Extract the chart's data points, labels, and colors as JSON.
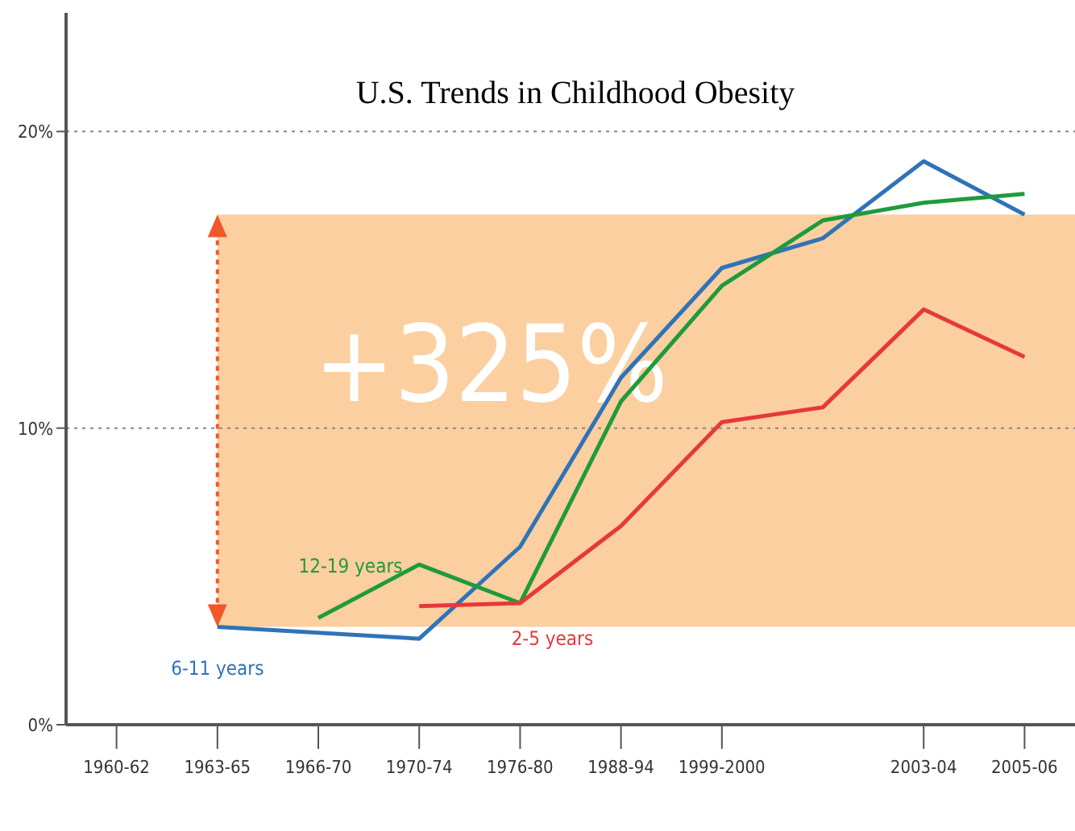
{
  "chart_data": {
    "type": "line",
    "title": "U.S. Trends in Childhood Obesity",
    "categories": [
      "1960-62",
      "1963-65",
      "1966-70",
      "1970-74",
      "1976-80",
      "1988-94",
      "1999-2000",
      null,
      "2003-04",
      "2005-06"
    ],
    "ylim": [
      0,
      24
    ],
    "yticks": [
      {
        "value": 0,
        "label": "0%"
      },
      {
        "value": 10,
        "label": "10%"
      },
      {
        "value": 20,
        "label": "20%"
      }
    ],
    "grid": "y",
    "marker": "none",
    "line_style": "solid",
    "bands": [
      {
        "axis": "y",
        "from": 3.3,
        "to": 17.2,
        "label": "+325%",
        "color": "#fbcf9f"
      }
    ],
    "series": [
      {
        "name": "6-11 years",
        "color": "#2f73b8",
        "values": [
          null,
          3.3,
          null,
          2.9,
          6.0,
          11.7,
          15.4,
          16.4,
          19.0,
          17.2
        ]
      },
      {
        "name": "12-19 years",
        "color": "#1f9a3c",
        "values": [
          null,
          null,
          3.6,
          5.4,
          4.1,
          10.9,
          14.8,
          17.0,
          17.6,
          17.9
        ]
      },
      {
        "name": "2-5 years",
        "color": "#e5393b",
        "values": [
          null,
          null,
          null,
          4.0,
          4.1,
          6.7,
          10.2,
          10.7,
          14.0,
          12.4
        ]
      }
    ]
  }
}
